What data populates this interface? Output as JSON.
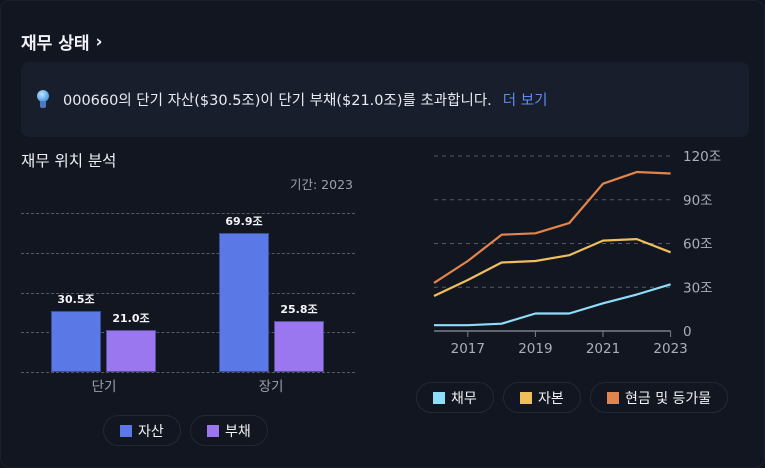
{
  "header": {
    "title": "재무 상태",
    "chevron_icon": "chevron-right-icon"
  },
  "insight": {
    "icon": "lightbulb-icon",
    "text": "000660의 단기 자산($30.5조)이 단기 부채($21.0조)를 초과합니다.",
    "link_label": "더 보기",
    "link_color": "#5f8cf0"
  },
  "position_analysis": {
    "title": "재무 위치 분석",
    "period_label": "기간: 2023"
  },
  "legend_left": [
    {
      "label": "자산",
      "color": "#5a78e6"
    },
    {
      "label": "부채",
      "color": "#9b77ef"
    }
  ],
  "legend_right": [
    {
      "label": "채무",
      "color": "#8fdcfb"
    },
    {
      "label": "자본",
      "color": "#efbf5b"
    },
    {
      "label": "현금 및 등가물",
      "color": "#e2854c"
    }
  ],
  "chart_data": [
    {
      "type": "bar",
      "title": "재무 위치 분석",
      "subtitle": "기간: 2023",
      "categories": [
        "단기",
        "장기"
      ],
      "series": [
        {
          "name": "자산",
          "color": "#5a78e6",
          "values": [
            30.5,
            69.9
          ],
          "labels": [
            "30.5조",
            "69.9조"
          ]
        },
        {
          "name": "부채",
          "color": "#9b77ef",
          "values": [
            21.0,
            25.8
          ],
          "labels": [
            "21.0조",
            "25.8조"
          ]
        }
      ],
      "unit": "조",
      "grid": true,
      "legend_position": "bottom"
    },
    {
      "type": "line",
      "x": [
        2016,
        2017,
        2018,
        2019,
        2020,
        2021,
        2022,
        2023
      ],
      "x_tick_labels": [
        "2017",
        "2019",
        "2021",
        "2023"
      ],
      "y_tick_labels": [
        "0",
        "30조",
        "60조",
        "90조",
        "120조"
      ],
      "ylim": [
        0,
        120
      ],
      "series": [
        {
          "name": "채무",
          "color": "#8fdcfb",
          "values": [
            4,
            4,
            5,
            12,
            12,
            19,
            25,
            32
          ]
        },
        {
          "name": "자본",
          "color": "#efbf5b",
          "values": [
            24,
            35,
            47,
            48,
            52,
            62,
            63,
            54
          ]
        },
        {
          "name": "현금 및 등가물",
          "color": "#e2854c",
          "values": [
            33,
            48,
            66,
            67,
            74,
            101,
            109,
            108
          ]
        }
      ],
      "grid": true,
      "y_axis_position": "right",
      "legend_position": "bottom"
    }
  ]
}
